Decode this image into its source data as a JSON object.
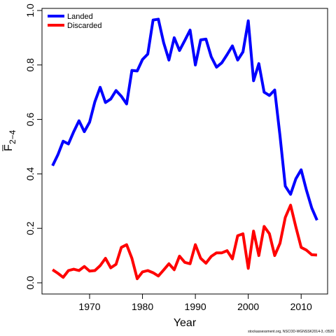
{
  "chart_data": {
    "type": "line",
    "xlabel": "Year",
    "ylabel_main": "F",
    "ylabel_sub": "2−4",
    "xlim": [
      1961,
      2015
    ],
    "ylim": [
      0,
      1
    ],
    "xticks": [
      1970,
      1980,
      1990,
      2000,
      2010
    ],
    "yticks": [
      0.0,
      0.2,
      0.4,
      0.6,
      0.8,
      1.0
    ],
    "ytick_labels": [
      "0.0",
      "0.2",
      "0.4",
      "0.6",
      "0.8",
      "1.0"
    ],
    "legend_position": "top-left",
    "grid": false,
    "series": [
      {
        "name": "Landed",
        "color": "#0000ff",
        "x": [
          1963,
          1964,
          1965,
          1966,
          1967,
          1968,
          1969,
          1970,
          1971,
          1972,
          1973,
          1974,
          1975,
          1976,
          1977,
          1978,
          1979,
          1980,
          1981,
          1982,
          1983,
          1984,
          1985,
          1986,
          1987,
          1988,
          1989,
          1990,
          1991,
          1992,
          1993,
          1994,
          1995,
          1996,
          1997,
          1998,
          1999,
          2000,
          2001,
          2002,
          2003,
          2004,
          2005,
          2006,
          2007,
          2008,
          2009,
          2010,
          2011,
          2012,
          2013
        ],
        "values": [
          0.43,
          0.47,
          0.52,
          0.51,
          0.555,
          0.595,
          0.555,
          0.59,
          0.665,
          0.718,
          0.662,
          0.675,
          0.706,
          0.685,
          0.657,
          0.78,
          0.778,
          0.82,
          0.84,
          0.965,
          0.968,
          0.882,
          0.818,
          0.9,
          0.853,
          0.89,
          0.928,
          0.8,
          0.892,
          0.895,
          0.83,
          0.792,
          0.808,
          0.838,
          0.87,
          0.818,
          0.848,
          0.962,
          0.742,
          0.805,
          0.7,
          0.688,
          0.708,
          0.54,
          0.355,
          0.325,
          0.382,
          0.415,
          0.34,
          0.275,
          0.23
        ]
      },
      {
        "name": "Discarded",
        "color": "#ff0000",
        "x": [
          1963,
          1964,
          1965,
          1966,
          1967,
          1968,
          1969,
          1970,
          1971,
          1972,
          1973,
          1974,
          1975,
          1976,
          1977,
          1978,
          1979,
          1980,
          1981,
          1982,
          1983,
          1984,
          1985,
          1986,
          1987,
          1988,
          1989,
          1990,
          1991,
          1992,
          1993,
          1994,
          1995,
          1996,
          1997,
          1998,
          1999,
          2000,
          2001,
          2002,
          2003,
          2004,
          2005,
          2006,
          2007,
          2008,
          2009,
          2010,
          2011,
          2012,
          2013
        ],
        "values": [
          0.048,
          0.035,
          0.02,
          0.045,
          0.05,
          0.045,
          0.06,
          0.043,
          0.045,
          0.063,
          0.09,
          0.055,
          0.068,
          0.13,
          0.14,
          0.09,
          0.015,
          0.04,
          0.045,
          0.037,
          0.025,
          0.047,
          0.07,
          0.048,
          0.098,
          0.075,
          0.07,
          0.14,
          0.09,
          0.072,
          0.097,
          0.11,
          0.11,
          0.118,
          0.088,
          0.173,
          0.18,
          0.053,
          0.19,
          0.1,
          0.207,
          0.18,
          0.1,
          0.145,
          0.24,
          0.285,
          0.205,
          0.13,
          0.12,
          0.103,
          0.102
        ]
      }
    ]
  },
  "footer": "stockassessment.org, NSCOD-WGNSSK2014-3, r3520"
}
